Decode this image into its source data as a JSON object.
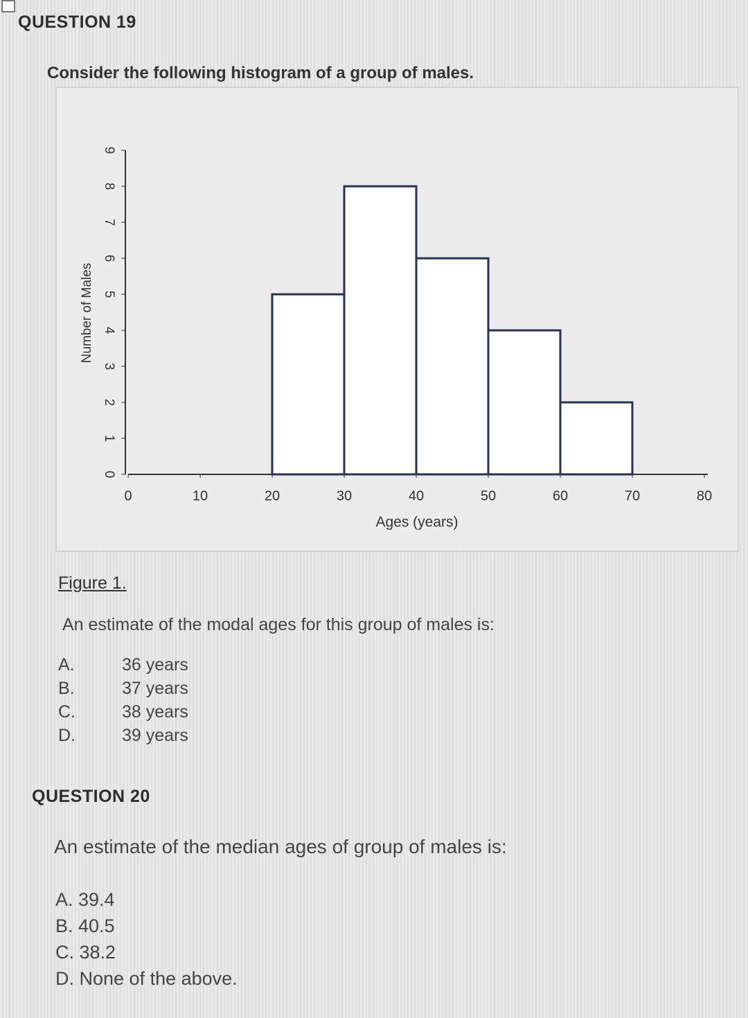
{
  "question19": {
    "title": "QUESTION 19",
    "intro": "Consider the following histogram of a group of males.",
    "caption": "Figure 1.",
    "question": "An estimate of the modal ages for this group of males is:",
    "options": [
      {
        "letter": "A.",
        "text": "36 years"
      },
      {
        "letter": "B.",
        "text": "37 years"
      },
      {
        "letter": "C.",
        "text": "38 years"
      },
      {
        "letter": "D.",
        "text": "39 years"
      }
    ]
  },
  "chart_data": {
    "type": "histogram",
    "x_label": "Ages (years)",
    "y_label": "Number of Males",
    "bins": [
      20,
      30,
      40,
      50,
      60,
      70
    ],
    "values": [
      5,
      8,
      6,
      4,
      2
    ],
    "color": "#ffffff",
    "edge_color": "#26325e",
    "xlim": [
      0,
      80
    ],
    "xticks": [
      0,
      10,
      20,
      30,
      40,
      50,
      60,
      70,
      80
    ],
    "ylim": [
      0,
      9
    ],
    "yticks": [
      0,
      1,
      2,
      3,
      4,
      5,
      6,
      7,
      8,
      9
    ]
  },
  "question20": {
    "title": "QUESTION 20",
    "question": "An estimate of the median ages of group of males is:",
    "options": [
      "A. 39.4",
      "B. 40.5",
      "C. 38.2",
      "D. None of the above."
    ]
  }
}
